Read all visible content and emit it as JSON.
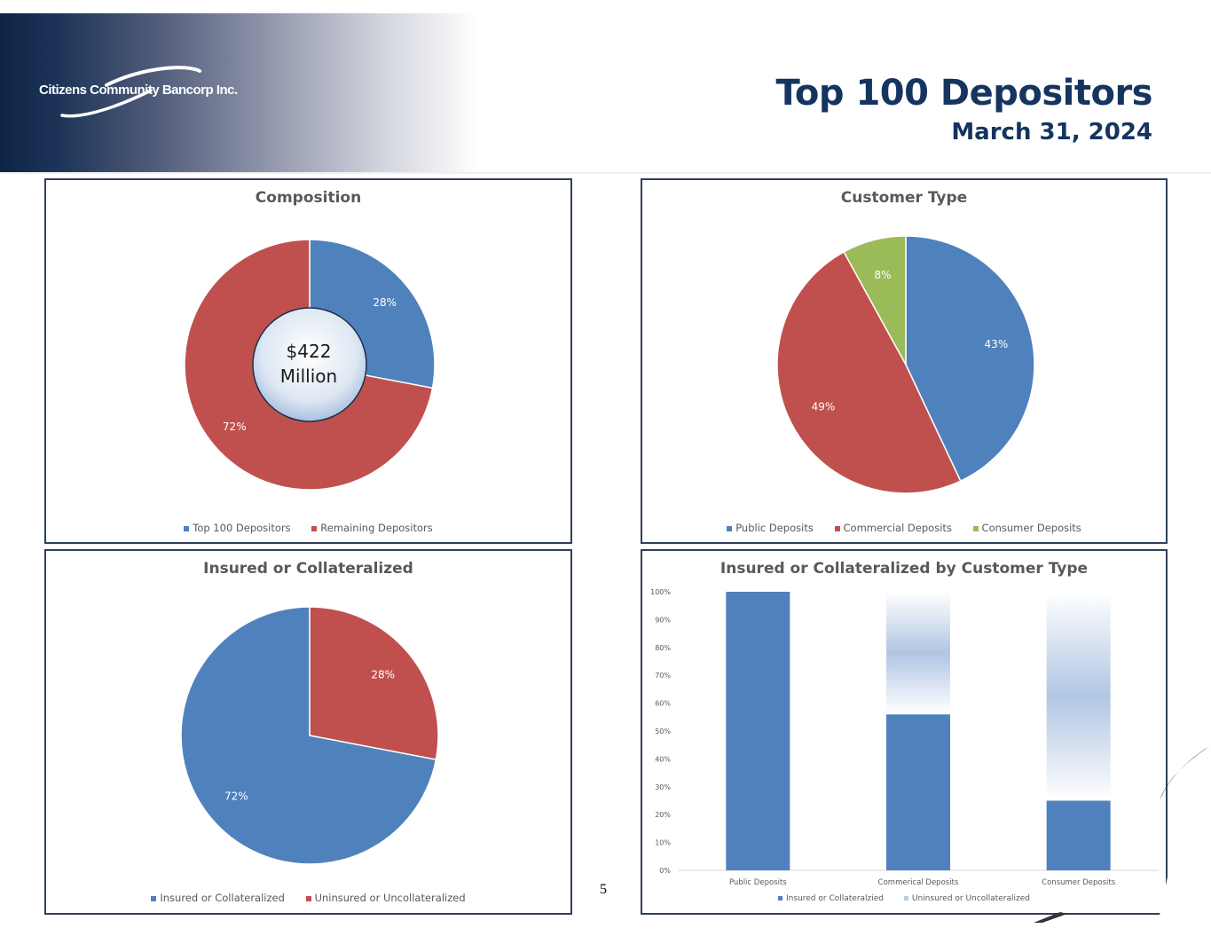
{
  "header": {
    "company_name": "Citizens Community Bancorp Inc.",
    "title": "Top 100 Depositors",
    "date": "March 31, 2024"
  },
  "page_number": "5",
  "colors": {
    "blue": "#4f81bd",
    "red": "#c0504d",
    "green": "#9bbb59",
    "navy": "#15345f",
    "light_blue": "#b8cce4"
  },
  "chart_data": [
    {
      "id": "composition",
      "type": "pie",
      "title": "Composition",
      "donut": true,
      "center_label": [
        "$422",
        "Million"
      ],
      "slices": [
        {
          "label": "Top 100 Depositors",
          "value": 28,
          "display": "28%",
          "color": "#4f81bd"
        },
        {
          "label": "Remaining Depositors",
          "value": 72,
          "display": "72%",
          "color": "#c0504d"
        }
      ],
      "legend": "bottom"
    },
    {
      "id": "customer_type",
      "type": "pie",
      "title": "Customer Type",
      "slices": [
        {
          "label": "Public Deposits",
          "value": 43,
          "display": "43%",
          "color": "#4f81bd"
        },
        {
          "label": "Commercial Deposits",
          "value": 49,
          "display": "49%",
          "color": "#c0504d"
        },
        {
          "label": "Consumer Deposits",
          "value": 8,
          "display": "8%",
          "color": "#9bbb59"
        }
      ],
      "legend": "bottom"
    },
    {
      "id": "insured",
      "type": "pie",
      "title": "Insured or Collateralized",
      "slices": [
        {
          "label": "Uninsured or Uncollateralized",
          "value": 28,
          "display": "28%",
          "color": "#c0504d"
        },
        {
          "label": "Insured or Collateralized",
          "value": 72,
          "display": "72%",
          "color": "#4f81bd"
        }
      ],
      "legend_order": [
        "Insured or Collateralized",
        "Uninsured or Uncollateralized"
      ],
      "legend": "bottom"
    },
    {
      "id": "insured_by_type",
      "type": "bar",
      "stacked": true,
      "title": "Insured or Collateralized by Customer Type",
      "categories": [
        "Public Deposits",
        "Commerical Deposits",
        "Consumer Deposits"
      ],
      "series": [
        {
          "name": "Insured or Collateralzied",
          "values": [
            100,
            56,
            25
          ],
          "color": "#4f81bd"
        },
        {
          "name": "Uninsured or Uncollateralized",
          "values": [
            0,
            44,
            75
          ],
          "color": "#b8cce4"
        }
      ],
      "ylim": [
        0,
        100
      ],
      "yticks": [
        "0%",
        "10%",
        "20%",
        "30%",
        "40%",
        "50%",
        "60%",
        "70%",
        "80%",
        "90%",
        "100%"
      ],
      "legend": "bottom",
      "grid": false
    }
  ]
}
